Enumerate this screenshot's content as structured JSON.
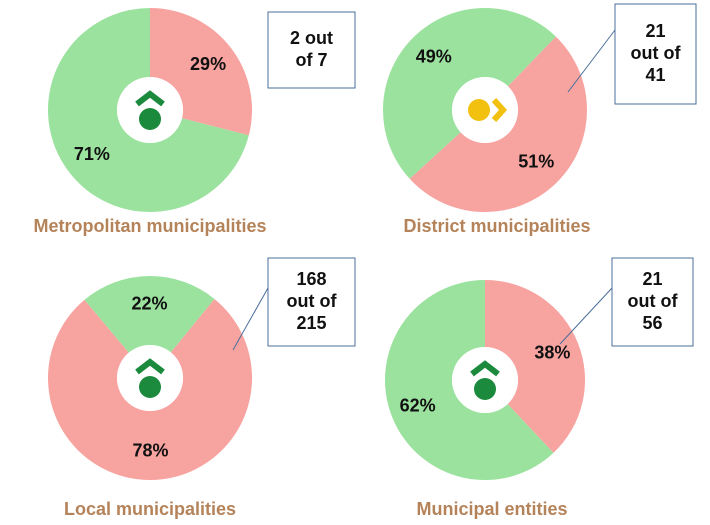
{
  "chart_data": [
    {
      "type": "pie",
      "title": "Metropolitan municipalities",
      "categories": [
        null,
        null
      ],
      "values": [
        29,
        71
      ],
      "colors": [
        "#f7a3a0",
        "#9be29f"
      ],
      "annotation": [
        "2 out",
        "of 7"
      ]
    },
    {
      "type": "pie",
      "title": "District municipalities",
      "categories": [
        null,
        null
      ],
      "values": [
        51,
        49
      ],
      "colors": [
        "#f7a3a0",
        "#9be29f"
      ],
      "annotation": [
        "21",
        "out of",
        "41"
      ]
    },
    {
      "type": "pie",
      "title": "Local municipalities",
      "categories": [
        null,
        null
      ],
      "values": [
        22,
        78
      ],
      "colors": [
        "#9be29f",
        "#f7a3a0"
      ],
      "annotation": [
        "168",
        "out of",
        "215"
      ]
    },
    {
      "type": "pie",
      "title": "Municipal entities",
      "categories": [
        null,
        null
      ],
      "values": [
        38,
        62
      ],
      "colors": [
        "#f7a3a0",
        "#9be29f"
      ],
      "annotation": [
        "21",
        "out of",
        "56"
      ]
    }
  ]
}
